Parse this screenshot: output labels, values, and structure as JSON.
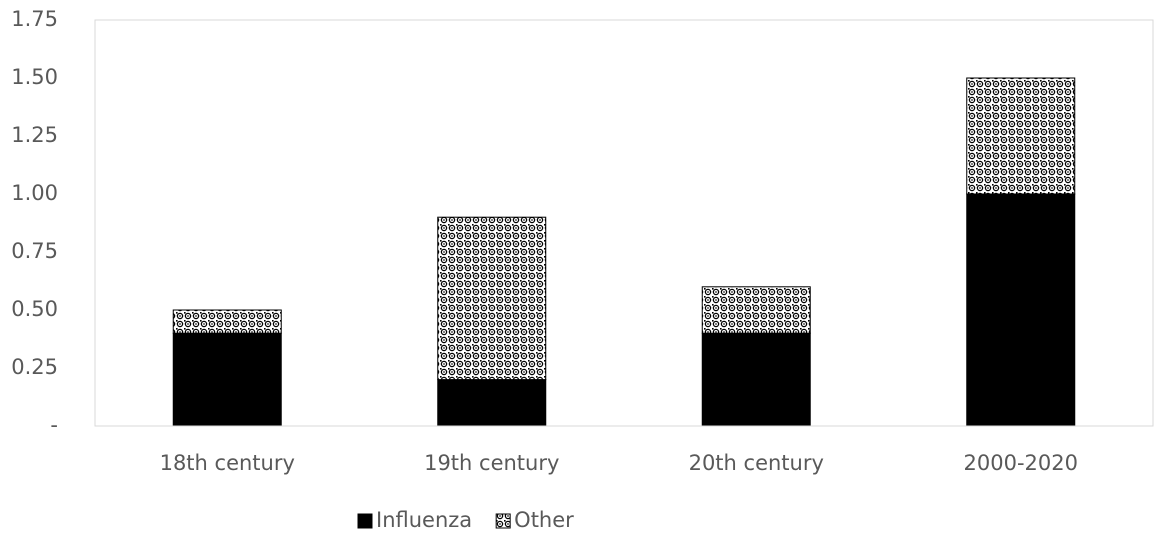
{
  "chart_data": {
    "type": "stacked_bar",
    "categories": [
      "18th century",
      "19th century",
      "20th century",
      "2000-2020"
    ],
    "series": [
      {
        "name": "Influenza",
        "color": "#000000",
        "values": [
          0.4,
          0.2,
          0.4,
          1.0
        ]
      },
      {
        "name": "Other",
        "color": "#000000",
        "pattern": "dots",
        "values": [
          0.1,
          0.7,
          0.2,
          0.5
        ]
      }
    ],
    "ylim": [
      0,
      1.75
    ],
    "yticks": [
      {
        "value": 0,
        "label": "-"
      },
      0.25,
      {
        "value": 0.5,
        "label": "0.50"
      },
      0.75,
      {
        "value": 1,
        "label": "1.00"
      },
      1.25,
      {
        "value": 1.5,
        "label": "1.50"
      },
      1.75
    ],
    "grid": false,
    "legend": "bottom"
  }
}
